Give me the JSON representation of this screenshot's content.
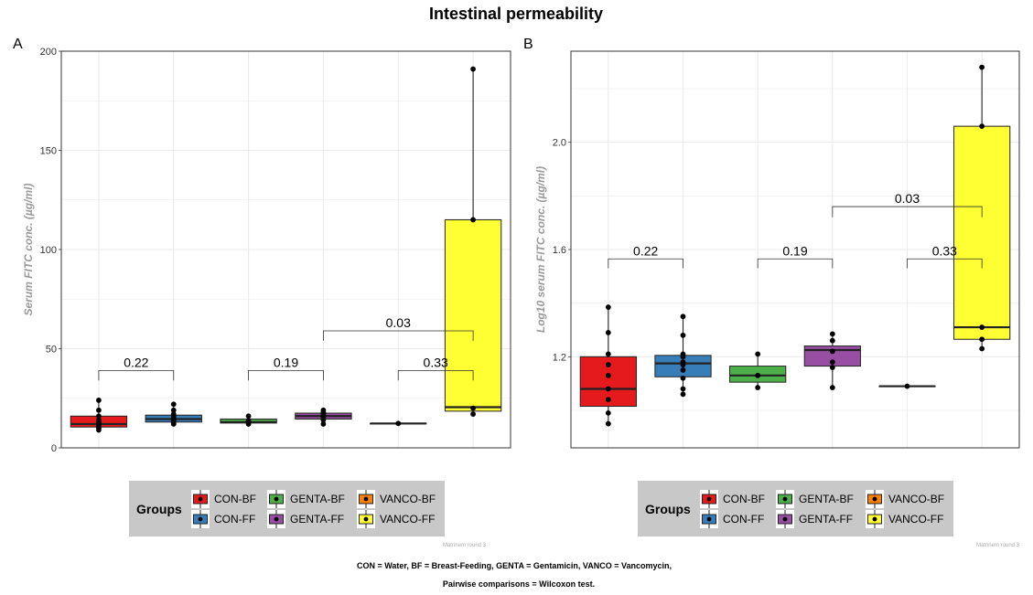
{
  "title": "Intestinal permeability",
  "caption_line1": "CON = Water, BF = Breast-Feeding, GENTA = Gentamicin,  VANCO = Vancomycin,",
  "caption_line2": "Pairwise comparisons = Wilcoxon test.",
  "colors": {
    "CON-BF": "#E41A1C",
    "CON-FF": "#377EB8",
    "GENTA-BF": "#4DAF4A",
    "GENTA-FF": "#984EA3",
    "VANCO-BF": "#FF7F00",
    "VANCO-FF": "#FFFF33",
    "grid": "#ebebeb",
    "legend_bg": "#c8c8c8"
  },
  "chart_data": [
    {
      "panel_tag": "A",
      "type": "box",
      "ylabel": "Serum FITC conc. (µg/ml)",
      "xlabel": "",
      "ylim": [
        0,
        200
      ],
      "yticks": [
        0,
        50,
        100,
        150,
        200
      ],
      "yticklabels": [
        "0",
        "50",
        "100",
        "150",
        "200"
      ],
      "grid": true,
      "categories": [
        "CON-BF",
        "CON-FF",
        "GENTA-BF",
        "GENTA-FF",
        "VANCO-BF",
        "VANCO-FF"
      ],
      "boxes": [
        {
          "group": "CON-BF",
          "min": 9,
          "q1": 10.5,
          "median": 12,
          "q3": 16,
          "max": 24,
          "points": [
            9,
            10,
            11,
            11.5,
            12,
            12.5,
            13,
            14,
            16,
            19,
            24
          ]
        },
        {
          "group": "CON-FF",
          "min": 12,
          "q1": 13,
          "median": 14.5,
          "q3": 16.5,
          "max": 22,
          "points": [
            12,
            12.5,
            13,
            14,
            14.5,
            15,
            16,
            17,
            19,
            22
          ]
        },
        {
          "group": "GENTA-BF",
          "min": 12,
          "q1": 12.5,
          "median": 13,
          "q3": 14.5,
          "max": 16,
          "points": [
            12,
            13,
            13.5,
            16
          ]
        },
        {
          "group": "GENTA-FF",
          "min": 12,
          "q1": 14.5,
          "median": 16,
          "q3": 17.5,
          "max": 19,
          "points": [
            12,
            14,
            15,
            16,
            17,
            17.5,
            18,
            19
          ]
        },
        {
          "group": "VANCO-BF",
          "min": 12.3,
          "q1": 12.3,
          "median": 12.3,
          "q3": 12.3,
          "max": 12.3,
          "points": [
            12.3
          ]
        },
        {
          "group": "VANCO-FF",
          "min": 17,
          "q1": 18.5,
          "median": 20.5,
          "q3": 115,
          "max": 191,
          "points": [
            17,
            20,
            115,
            191
          ]
        }
      ],
      "comparisons": [
        {
          "from": "CON-BF",
          "to": "CON-FF",
          "label": "0.22",
          "y": 39,
          "tip": 34
        },
        {
          "from": "GENTA-BF",
          "to": "GENTA-FF",
          "label": "0.19",
          "y": 39,
          "tip": 34
        },
        {
          "from": "VANCO-BF",
          "to": "VANCO-FF",
          "label": "0.33",
          "y": 39,
          "tip": 34
        },
        {
          "from": "GENTA-FF",
          "to": "VANCO-FF",
          "label": "0.03",
          "y": 59,
          "tip": 54
        }
      ],
      "legend_title": "Groups",
      "legend_entries": [
        "CON-BF",
        "CON-FF",
        "GENTA-BF",
        "GENTA-FF",
        "VANCO-BF",
        "VANCO-FF"
      ],
      "legend_placement": "bottom",
      "watermark": "Matrinem round 3"
    },
    {
      "panel_tag": "B",
      "type": "box",
      "ylabel": "Log10 serum FITC conc. (µg/ml)",
      "xlabel": "",
      "ylim": [
        0.86,
        2.34
      ],
      "yticks": [
        1.2,
        1.6,
        2.0
      ],
      "yticklabels": [
        "1.2",
        "1.6",
        "2.0"
      ],
      "grid": true,
      "categories": [
        "CON-BF",
        "CON-FF",
        "GENTA-BF",
        "GENTA-FF",
        "VANCO-BF",
        "VANCO-FF"
      ],
      "boxes": [
        {
          "group": "CON-BF",
          "min": 0.95,
          "q1": 1.015,
          "median": 1.08,
          "q3": 1.2,
          "max": 1.385,
          "points": [
            0.95,
            0.99,
            1.04,
            1.08,
            1.13,
            1.17,
            1.21,
            1.29,
            1.385
          ]
        },
        {
          "group": "CON-FF",
          "min": 1.06,
          "q1": 1.125,
          "median": 1.175,
          "q3": 1.205,
          "max": 1.35,
          "points": [
            1.06,
            1.08,
            1.12,
            1.15,
            1.17,
            1.18,
            1.2,
            1.21,
            1.28,
            1.35
          ]
        },
        {
          "group": "GENTA-BF",
          "min": 1.085,
          "q1": 1.105,
          "median": 1.13,
          "q3": 1.165,
          "max": 1.21,
          "points": [
            1.085,
            1.13,
            1.21
          ]
        },
        {
          "group": "GENTA-FF",
          "min": 1.085,
          "q1": 1.165,
          "median": 1.225,
          "q3": 1.24,
          "max": 1.285,
          "points": [
            1.085,
            1.16,
            1.18,
            1.22,
            1.26,
            1.285
          ]
        },
        {
          "group": "VANCO-BF",
          "min": 1.09,
          "q1": 1.09,
          "median": 1.09,
          "q3": 1.09,
          "max": 1.09,
          "points": [
            1.09
          ]
        },
        {
          "group": "VANCO-FF",
          "min": 1.23,
          "q1": 1.265,
          "median": 1.31,
          "q3": 2.06,
          "max": 2.28,
          "points": [
            1.23,
            1.265,
            1.31,
            2.06,
            2.28
          ]
        }
      ],
      "comparisons": [
        {
          "from": "CON-BF",
          "to": "CON-FF",
          "label": "0.22",
          "y": 1.565,
          "tip": 1.53
        },
        {
          "from": "GENTA-BF",
          "to": "GENTA-FF",
          "label": "0.19",
          "y": 1.565,
          "tip": 1.53
        },
        {
          "from": "VANCO-BF",
          "to": "VANCO-FF",
          "label": "0.33",
          "y": 1.565,
          "tip": 1.53
        },
        {
          "from": "GENTA-FF",
          "to": "VANCO-FF",
          "label": "0.03",
          "y": 1.76,
          "tip": 1.72
        }
      ],
      "legend_title": "Groups",
      "legend_entries": [
        "CON-BF",
        "CON-FF",
        "GENTA-BF",
        "GENTA-FF",
        "VANCO-BF",
        "VANCO-FF"
      ],
      "legend_placement": "bottom",
      "watermark": "Matrinem round 3"
    }
  ]
}
